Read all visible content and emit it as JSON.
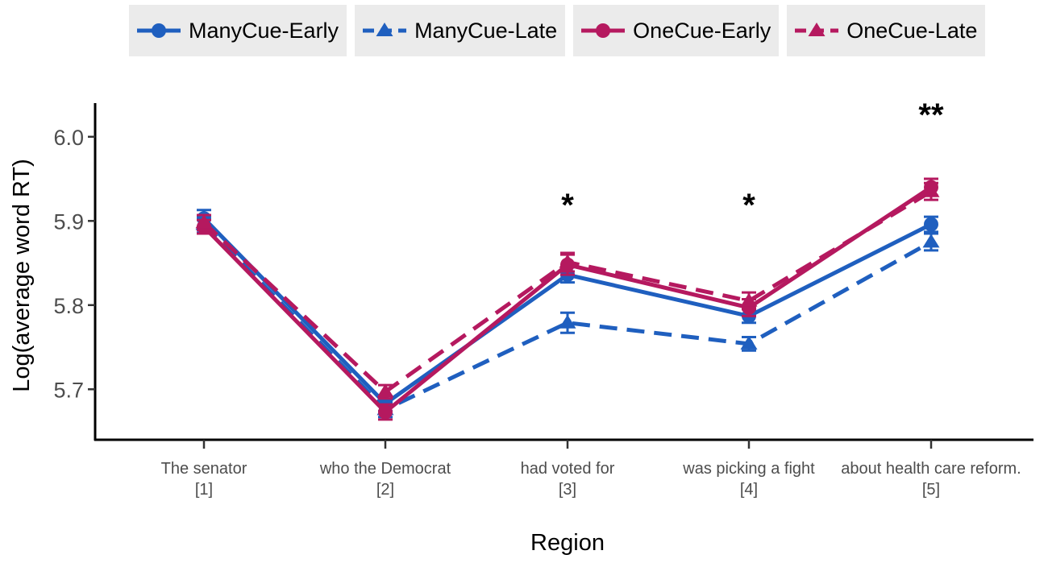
{
  "chart_data": {
    "type": "line",
    "title": "",
    "xlabel": "Region",
    "ylabel": "Log(average word RT)",
    "ylim": [
      5.64,
      6.04
    ],
    "yticks": [
      5.7,
      5.8,
      5.9,
      6.0
    ],
    "ytick_labels": [
      "5.7",
      "5.8",
      "5.9",
      "6.0"
    ],
    "grid": false,
    "legend_position": "top",
    "categories": [
      {
        "line1": "The senator",
        "line2": "[1]"
      },
      {
        "line1": "who the Democrat",
        "line2": "[2]"
      },
      {
        "line1": "had voted for",
        "line2": "[3]"
      },
      {
        "line1": "was picking a fight",
        "line2": "[4]"
      },
      {
        "line1": "about health care reform.",
        "line2": "[5]"
      }
    ],
    "series": [
      {
        "name": "ManyCue-Early",
        "color": "#1f5fbf",
        "marker": "circle",
        "dash": "solid",
        "values": [
          5.903,
          5.683,
          5.836,
          5.787,
          5.896
        ],
        "err": [
          0.01,
          0.009,
          0.009,
          0.008,
          0.009
        ]
      },
      {
        "name": "ManyCue-Late",
        "color": "#1f5fbf",
        "marker": "triangle",
        "dash": "dashed",
        "values": [
          5.896,
          5.676,
          5.779,
          5.754,
          5.875
        ],
        "err": [
          0.01,
          0.009,
          0.012,
          0.008,
          0.01
        ]
      },
      {
        "name": "OneCue-Early",
        "color": "#b5195f",
        "marker": "circle",
        "dash": "solid",
        "values": [
          5.893,
          5.673,
          5.848,
          5.797,
          5.94
        ],
        "err": [
          0.008,
          0.009,
          0.012,
          0.01,
          0.01
        ]
      },
      {
        "name": "OneCue-Late",
        "color": "#b5195f",
        "marker": "triangle",
        "dash": "dashed",
        "values": [
          5.898,
          5.697,
          5.851,
          5.805,
          5.935
        ],
        "err": [
          0.009,
          0.008,
          0.011,
          0.01,
          0.01
        ]
      }
    ],
    "annotations": [
      {
        "text": "*",
        "category_index": 2
      },
      {
        "text": "*",
        "category_index": 3
      },
      {
        "text": "**",
        "category_index": 4
      }
    ]
  }
}
